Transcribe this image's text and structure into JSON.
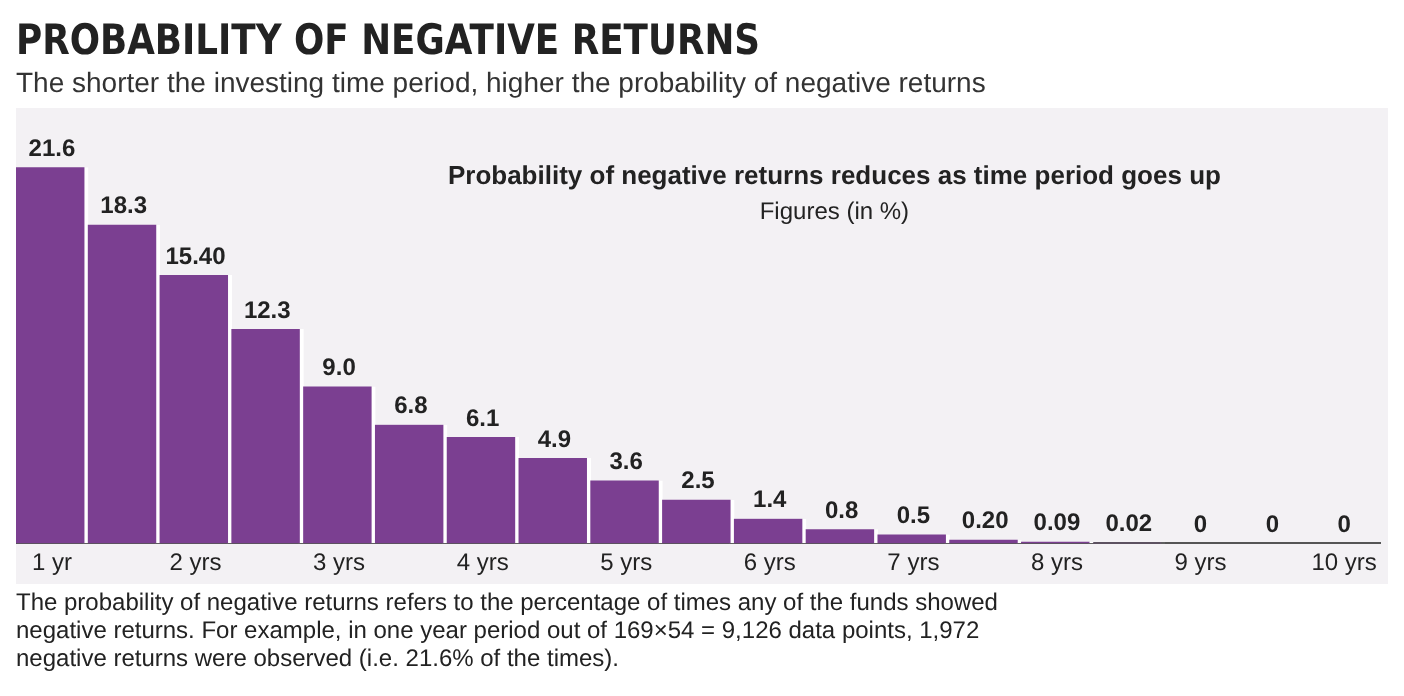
{
  "chart_data": {
    "type": "bar",
    "title": "PROBABILITY OF NEGATIVE RETURNS",
    "subtitle": "The shorter the investing time period, higher the probability of negative returns",
    "annotations": [
      "Probability of negative returns reduces as time period goes up",
      "Figures (in %)",
      "The probability of negative returns refers to the percentage of times any of the funds showed negative returns. For example, in one year period out of 169×54 = 9,126 data points, 1,972 negative returns were observed (i.e. 21.6% of the times)."
    ],
    "categories": [
      "1 yr",
      null,
      "2 yrs",
      null,
      "3 yrs",
      null,
      "4 yrs",
      null,
      "5 yrs",
      null,
      "6 yrs",
      null,
      "7 yrs",
      null,
      "8 yrs",
      null,
      "9 yrs",
      null,
      "10 yrs"
    ],
    "values": [
      21.6,
      18.3,
      15.4,
      12.3,
      9.0,
      6.8,
      6.1,
      4.9,
      3.6,
      2.5,
      1.4,
      0.8,
      0.5,
      0.2,
      0.09,
      0.02,
      0,
      0,
      0
    ],
    "value_labels": [
      "21.6",
      "18.3",
      "15.40",
      "12.3",
      "9.0",
      "6.8",
      "6.1",
      "4.9",
      "3.6",
      "2.5",
      "1.4",
      "0.8",
      "0.5",
      "0.20",
      "0.09",
      "0.02",
      "0",
      "0",
      "0"
    ],
    "color": "#7b3f91",
    "grid": false,
    "legend": false
  }
}
